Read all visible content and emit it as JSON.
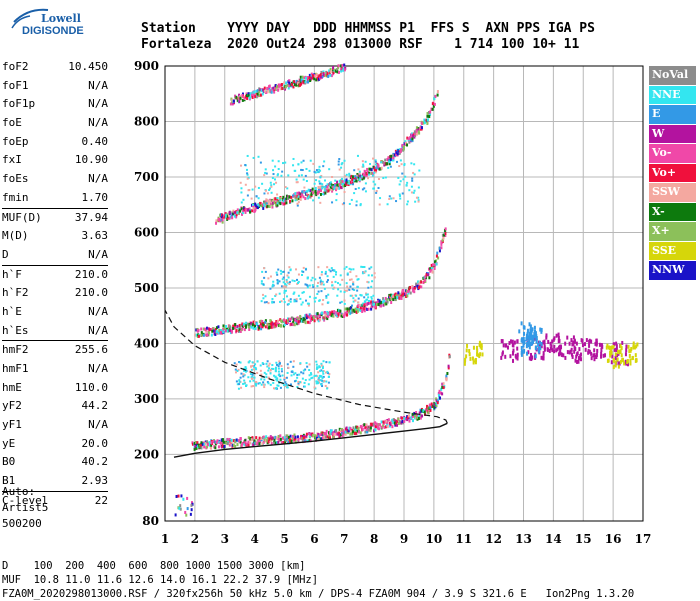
{
  "logo": {
    "line1": "Lowell",
    "line2": "DIGISONDE"
  },
  "header": {
    "line1": "Station    YYYY DAY   DDD HHMMSS P1  FFS S  AXN PPS IGA PS",
    "line2": "Fortaleza  2020 Out24 298 013000 RSF    1 714 100 10+ 11"
  },
  "params": [
    {
      "k": "foF2",
      "v": "10.450"
    },
    {
      "k": "foF1",
      "v": "N/A"
    },
    {
      "k": "foF1p",
      "v": "N/A"
    },
    {
      "k": "foE",
      "v": "N/A"
    },
    {
      "k": "foEp",
      "v": "0.40"
    },
    {
      "k": "fxI",
      "v": "10.90"
    },
    {
      "k": "foEs",
      "v": "N/A"
    },
    {
      "k": "fmin",
      "v": "1.70"
    },
    {
      "k": "MUF(D)",
      "v": "37.94",
      "sep": true
    },
    {
      "k": "M(D)",
      "v": "3.63"
    },
    {
      "k": "D",
      "v": "N/A"
    },
    {
      "k": "h`F",
      "v": "210.0",
      "sep": true
    },
    {
      "k": "h`F2",
      "v": "210.0"
    },
    {
      "k": "h`E",
      "v": "N/A"
    },
    {
      "k": "h`Es",
      "v": "N/A"
    },
    {
      "k": "hmF2",
      "v": "255.6",
      "sep": true
    },
    {
      "k": "hmF1",
      "v": "N/A"
    },
    {
      "k": "hmE",
      "v": "110.0"
    },
    {
      "k": "yF2",
      "v": "44.2"
    },
    {
      "k": "yF1",
      "v": "N/A"
    },
    {
      "k": "yE",
      "v": "20.0"
    },
    {
      "k": "B0",
      "v": "40.2"
    },
    {
      "k": "B1",
      "v": "2.93"
    },
    {
      "k": "C-level",
      "v": "22",
      "sep": true
    }
  ],
  "auto": {
    "l1": "Auto:",
    "l2": "Artist5",
    "l3": "500200"
  },
  "legend": [
    {
      "label": "NoVal",
      "color": "#8c8c8c"
    },
    {
      "label": "NNE",
      "color": "#33e6f0"
    },
    {
      "label": "E",
      "color": "#3399e6"
    },
    {
      "label": "W",
      "color": "#b3139f"
    },
    {
      "label": "Vo-",
      "color": "#f048a8"
    },
    {
      "label": "Vo+",
      "color": "#f0103c"
    },
    {
      "label": "SSW",
      "color": "#f4a8a0"
    },
    {
      "label": "X-",
      "color": "#0d7a0d"
    },
    {
      "label": "X+",
      "color": "#8cc05a"
    },
    {
      "label": "SSE",
      "color": "#d6d60a"
    },
    {
      "label": "NNW",
      "color": "#1a13c8"
    }
  ],
  "chart_data": {
    "type": "scatter",
    "title": "",
    "xlabel": "",
    "ylabel": "",
    "xlim": [
      1,
      17
    ],
    "ylim": [
      80,
      900
    ],
    "xticks": [
      1,
      2,
      3,
      4,
      5,
      6,
      7,
      8,
      9,
      10,
      11,
      12,
      13,
      14,
      15,
      16,
      17
    ],
    "yticks": [
      80,
      200,
      300,
      400,
      500,
      600,
      700,
      800,
      900
    ],
    "grid": true,
    "traces": [
      {
        "name": "F2 trace (1 hop)",
        "x": [
          1.9,
          3,
          4,
          5,
          6,
          7,
          8,
          9,
          9.5,
          10,
          10.2,
          10.4,
          10.5
        ],
        "y": [
          215,
          220,
          224,
          227,
          232,
          240,
          250,
          262,
          272,
          290,
          310,
          340,
          380
        ]
      },
      {
        "name": "F2 trace (2 hop)",
        "x": [
          2,
          3,
          4,
          5,
          6,
          7,
          8,
          9,
          9.5,
          10,
          10.4
        ],
        "y": [
          418,
          425,
          432,
          438,
          446,
          456,
          470,
          490,
          505,
          540,
          610
        ]
      },
      {
        "name": "F2 trace (3 hop)",
        "x": [
          2.7,
          3.5,
          4.5,
          5.5,
          6.5,
          7.5,
          8.5,
          9.2,
          9.7,
          10.1
        ],
        "y": [
          622,
          637,
          652,
          665,
          680,
          700,
          730,
          770,
          800,
          850
        ]
      },
      {
        "name": "F2 trace (4 hop)",
        "x": [
          3.2,
          4,
          5,
          6,
          7
        ],
        "y": [
          837,
          850,
          865,
          880,
          898
        ]
      }
    ],
    "profile": {
      "x": [
        1.3,
        2,
        3,
        4,
        5,
        6,
        7,
        8,
        9,
        9.8,
        10.2,
        10.45,
        10.4,
        10.1,
        9,
        7.5,
        6,
        4.5,
        3,
        2,
        1.3,
        1
      ],
      "y": [
        195,
        202,
        209,
        214,
        219,
        224,
        230,
        236,
        242,
        247,
        250,
        256,
        262,
        268,
        276,
        290,
        310,
        336,
        366,
        396,
        430,
        460
      ]
    },
    "scatter_groups": [
      {
        "color": "#b3139f",
        "x": [
          12.5,
          13.4,
          13.9,
          14.4,
          14.9,
          15.4,
          16.2
        ],
        "y": [
          390,
          395,
          400,
          395,
          390,
          390,
          385
        ]
      },
      {
        "color": "#3399e6",
        "x": [
          13.1,
          13.3,
          13.2
        ],
        "y": [
          420,
          410,
          400
        ]
      },
      {
        "color": "#d6d60a",
        "x": [
          11.3,
          16.0,
          16.5
        ],
        "y": [
          385,
          380,
          385
        ]
      }
    ]
  },
  "footer": {
    "line1": "D    100  200  400  600  800 1000 1500 3000 [km]",
    "line2": "MUF  10.8 11.0 11.6 12.6 14.0 16.1 22.2 37.9 [MHz]",
    "line3": "FZA0M_2020298013000.RSF / 320fx256h 50 kHz 5.0 km / DPS-4 FZA0M 904 / 3.9 S 321.6 E   Ion2Png 1.3.20"
  }
}
